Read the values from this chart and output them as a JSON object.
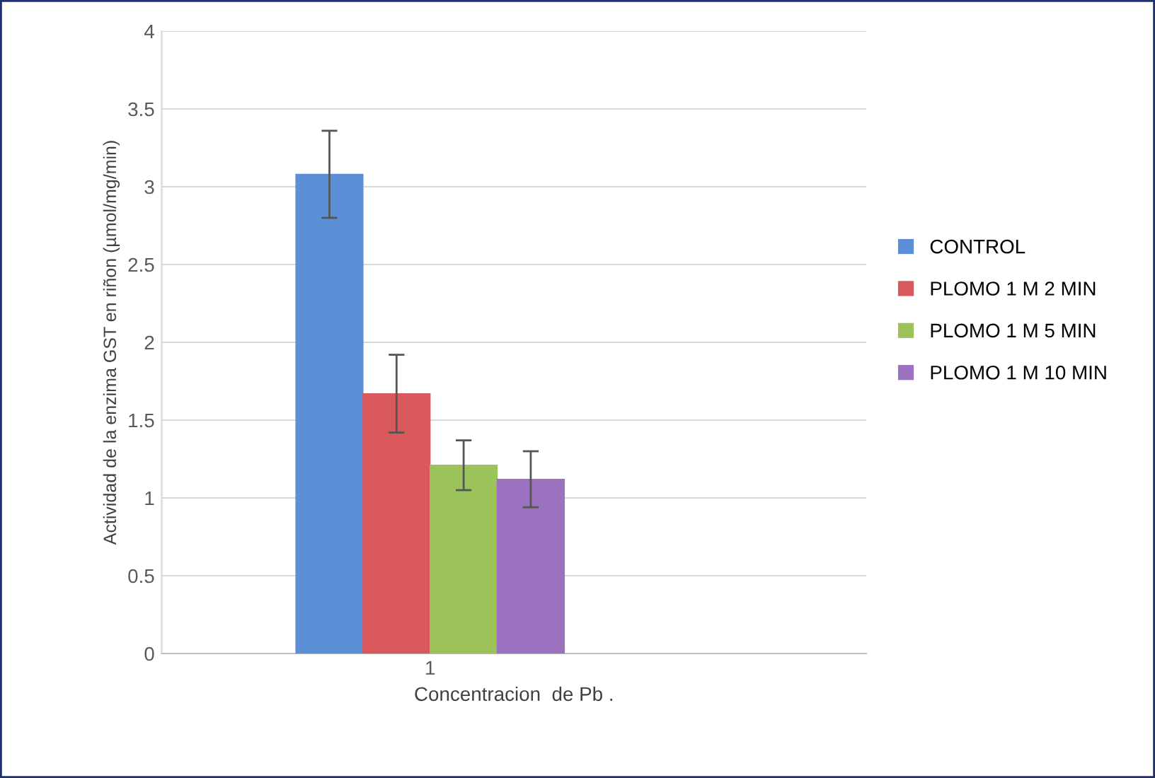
{
  "chart_data": {
    "type": "bar",
    "xlabel": "Concentracion  de Pb .",
    "ylabel": "Actividad de la enzima GST en riñon (µmol/mg/min)",
    "categories": [
      "1"
    ],
    "series": [
      {
        "name": "CONTROL",
        "color": "#5b8fd6",
        "values": [
          3.08
        ],
        "errors": [
          0.28
        ]
      },
      {
        "name": "PLOMO 1 M 2 MIN",
        "color": "#d9585c",
        "values": [
          1.67
        ],
        "errors": [
          0.25
        ]
      },
      {
        "name": "PLOMO 1 M 5 MIN",
        "color": "#9cc25a",
        "values": [
          1.21
        ],
        "errors": [
          0.16
        ]
      },
      {
        "name": "PLOMO 1 M 10 MIN",
        "color": "#9a72c0",
        "values": [
          1.12
        ],
        "errors": [
          0.18
        ]
      }
    ],
    "ylim": [
      0,
      4
    ],
    "yticks": [
      0,
      0.5,
      1,
      1.5,
      2,
      2.5,
      3,
      3.5,
      4
    ],
    "grid": "y",
    "legend": "right"
  }
}
